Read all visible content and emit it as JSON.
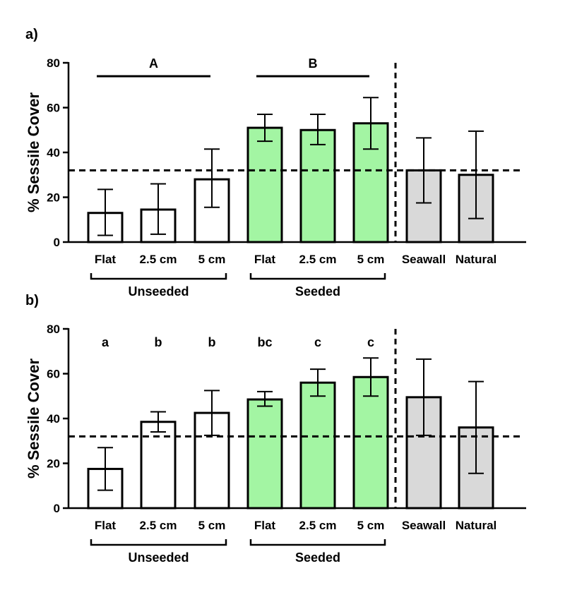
{
  "colors": {
    "unseeded": "#ffffff",
    "seeded": "#a3f5a3",
    "reference": "#d9d9d9",
    "stroke": "#000000"
  },
  "chart_data": [
    {
      "type": "bar",
      "panel_label": "a)",
      "ylabel": "% Sessile Cover",
      "xlabel": "",
      "ylim": [
        0,
        80
      ],
      "yticks": [
        "0",
        "20",
        "40",
        "60",
        "80"
      ],
      "categories": [
        "Flat",
        "2.5 cm",
        "5 cm",
        "Flat",
        "2.5 cm",
        "5 cm",
        "Seawall",
        "Natural"
      ],
      "fill_groups": [
        "unseeded",
        "unseeded",
        "unseeded",
        "seeded",
        "seeded",
        "seeded",
        "reference",
        "reference"
      ],
      "values": [
        13,
        14.5,
        28,
        51,
        50,
        53,
        32,
        30
      ],
      "err_low": [
        3,
        3.5,
        15.5,
        45,
        43.5,
        41.5,
        17.5,
        10.5
      ],
      "err_high": [
        23.5,
        26,
        41.5,
        57,
        57,
        64.5,
        46.5,
        49.5
      ],
      "reference_line": 32,
      "groups": [
        {
          "label": "Unseeded",
          "from": 0,
          "to": 2
        },
        {
          "label": "Seeded",
          "from": 3,
          "to": 5
        }
      ],
      "significance": [
        {
          "label": "A",
          "from": 0,
          "to": 2,
          "y": 74
        },
        {
          "label": "B",
          "from": 3,
          "to": 5,
          "y": 74
        }
      ]
    },
    {
      "type": "bar",
      "panel_label": "b)",
      "ylabel": "% Sessile Cover",
      "xlabel": "",
      "ylim": [
        0,
        80
      ],
      "yticks": [
        "0",
        "20",
        "40",
        "60",
        "80"
      ],
      "categories": [
        "Flat",
        "2.5 cm",
        "5 cm",
        "Flat",
        "2.5 cm",
        "5 cm",
        "Seawall",
        "Natural"
      ],
      "fill_groups": [
        "unseeded",
        "unseeded",
        "unseeded",
        "seeded",
        "seeded",
        "seeded",
        "reference",
        "reference"
      ],
      "values": [
        17.5,
        38.5,
        42.5,
        48.5,
        56,
        58.5,
        49.5,
        36
      ],
      "err_low": [
        8,
        34,
        32.5,
        45.5,
        50,
        50,
        32.5,
        15.5
      ],
      "err_high": [
        27,
        43,
        52.5,
        52,
        62,
        67,
        66.5,
        56.5
      ],
      "reference_line": 32,
      "groups": [
        {
          "label": "Unseeded",
          "from": 0,
          "to": 2
        },
        {
          "label": "Seeded",
          "from": 3,
          "to": 5
        }
      ],
      "letters": [
        "a",
        "b",
        "b",
        "bc",
        "c",
        "c",
        "",
        ""
      ]
    }
  ]
}
